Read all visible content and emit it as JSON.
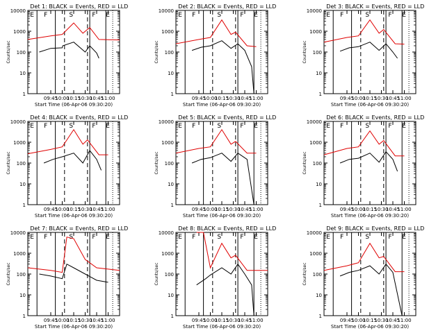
{
  "figure": {
    "background": "#ffffff",
    "axis_color": "#000000",
    "events_color": "#000000",
    "lld_color": "#e00000"
  },
  "chart_data": [
    {
      "type": "line",
      "title": "Det 1: BLACK = Events, RED = LLD",
      "xlabel": "Start Time (06-Apr-06 09:30:20)",
      "ylabel": "Counts/sec",
      "x_ticks": [
        "09:45",
        "10:00",
        "10:15",
        "10:30",
        "10:45",
        "11:00"
      ],
      "y_ticks": [
        "1",
        "10",
        "100",
        "1000",
        "10000"
      ],
      "y_scale": "log",
      "ylim": [
        1,
        10000
      ],
      "markers": [
        "E",
        "F",
        "S",
        "F",
        "E"
      ],
      "series": [
        {
          "name": "Events",
          "color": "black",
          "values": [
            [
              9.5,
              100
            ],
            [
              9.75,
              150
            ],
            [
              10.0,
              160
            ],
            [
              10.01,
              200
            ],
            [
              10.25,
              300
            ],
            [
              10.5,
              100
            ],
            [
              10.6,
              200
            ],
            [
              10.75,
              90
            ],
            [
              10.8,
              50
            ]
          ]
        },
        {
          "name": "LLD",
          "color": "red",
          "values": [
            [
              9.25,
              400
            ],
            [
              9.75,
              600
            ],
            [
              10.0,
              700
            ],
            [
              10.25,
              2500
            ],
            [
              10.45,
              800
            ],
            [
              10.6,
              1500
            ],
            [
              10.8,
              400
            ],
            [
              11.25,
              380
            ]
          ]
        }
      ]
    },
    {
      "type": "line",
      "title": "Det 2: BLACK = Events, RED = LLD",
      "xlabel": "Start Time (06-Apr-06 09:30:20)",
      "ylabel": "Counts/sec",
      "x_ticks": [
        "09:45",
        "10:00",
        "10:15",
        "10:30",
        "10:45",
        "11:00"
      ],
      "y_ticks": [
        "1",
        "10",
        "100",
        "1000",
        "10000"
      ],
      "y_scale": "log",
      "ylim": [
        1,
        10000
      ],
      "markers": [
        "E",
        "F",
        "S",
        "F",
        "E"
      ],
      "series": [
        {
          "name": "Events",
          "color": "black",
          "values": [
            [
              9.6,
              120
            ],
            [
              9.8,
              170
            ],
            [
              10.0,
              200
            ],
            [
              10.25,
              350
            ],
            [
              10.45,
              150
            ],
            [
              10.6,
              250
            ],
            [
              10.75,
              120
            ],
            [
              10.9,
              20
            ],
            [
              10.95,
              1
            ]
          ]
        },
        {
          "name": "LLD",
          "color": "red",
          "values": [
            [
              9.25,
              250
            ],
            [
              9.75,
              400
            ],
            [
              10.0,
              500
            ],
            [
              10.25,
              3500
            ],
            [
              10.45,
              700
            ],
            [
              10.55,
              900
            ],
            [
              10.8,
              200
            ],
            [
              11.0,
              180
            ]
          ]
        }
      ]
    },
    {
      "type": "line",
      "title": "Det 3: BLACK = Events, RED = LLD",
      "xlabel": "Start Time (06-Apr-06 09:30:20)",
      "ylabel": "Counts/sec",
      "x_ticks": [
        "09:45",
        "10:00",
        "10:15",
        "10:30",
        "10:45",
        "11:00"
      ],
      "y_ticks": [
        "1",
        "10",
        "100",
        "1000",
        "10000"
      ],
      "y_scale": "log",
      "ylim": [
        1,
        10000
      ],
      "markers": [
        "E",
        "F",
        "S",
        "F",
        "E"
      ],
      "series": [
        {
          "name": "Events",
          "color": "black",
          "values": [
            [
              9.6,
              110
            ],
            [
              9.8,
              160
            ],
            [
              10.0,
              180
            ],
            [
              10.25,
              300
            ],
            [
              10.45,
              120
            ],
            [
              10.6,
              250
            ],
            [
              10.75,
              100
            ],
            [
              10.85,
              50
            ]
          ]
        },
        {
          "name": "LLD",
          "color": "red",
          "values": [
            [
              9.25,
              300
            ],
            [
              9.75,
              500
            ],
            [
              10.0,
              600
            ],
            [
              10.25,
              3500
            ],
            [
              10.45,
              800
            ],
            [
              10.55,
              1200
            ],
            [
              10.8,
              250
            ],
            [
              11.0,
              240
            ]
          ]
        }
      ]
    },
    {
      "type": "line",
      "title": "Det 4: BLACK = Events, RED = LLD",
      "xlabel": "Start Time (06-Apr-06 09:30:20)",
      "ylabel": "Counts/sec",
      "x_ticks": [
        "09:45",
        "10:00",
        "10:15",
        "10:30",
        "10:45",
        "11:00"
      ],
      "y_ticks": [
        "1",
        "10",
        "100",
        "1000",
        "10000"
      ],
      "y_scale": "log",
      "ylim": [
        1,
        10000
      ],
      "markers": [
        "E",
        "F",
        "S",
        "F",
        "E"
      ],
      "series": [
        {
          "name": "Events",
          "color": "black",
          "values": [
            [
              9.6,
              100
            ],
            [
              9.8,
              150
            ],
            [
              10.0,
              200
            ],
            [
              10.25,
              300
            ],
            [
              10.45,
              100
            ],
            [
              10.6,
              400
            ],
            [
              10.75,
              150
            ],
            [
              10.85,
              45
            ]
          ]
        },
        {
          "name": "LLD",
          "color": "red",
          "values": [
            [
              9.25,
              280
            ],
            [
              9.75,
              450
            ],
            [
              10.0,
              600
            ],
            [
              10.25,
              4000
            ],
            [
              10.45,
              800
            ],
            [
              10.55,
              1300
            ],
            [
              10.8,
              250
            ],
            [
              11.0,
              250
            ]
          ]
        }
      ]
    },
    {
      "type": "line",
      "title": "Det 5: BLACK = Events, RED = LLD",
      "xlabel": "Start Time (06-Apr-06 09:30:20)",
      "ylabel": "Counts/sec",
      "x_ticks": [
        "09:45",
        "10:00",
        "10:15",
        "10:30",
        "10:45",
        "11:00"
      ],
      "y_ticks": [
        "1",
        "10",
        "100",
        "1000",
        "10000"
      ],
      "y_scale": "log",
      "ylim": [
        1,
        10000
      ],
      "markers": [
        "E",
        "F",
        "S",
        "F",
        "E"
      ],
      "series": [
        {
          "name": "Events",
          "color": "black",
          "values": [
            [
              9.6,
              100
            ],
            [
              9.8,
              150
            ],
            [
              10.0,
              180
            ],
            [
              10.25,
              300
            ],
            [
              10.45,
              120
            ],
            [
              10.6,
              300
            ],
            [
              10.8,
              150
            ],
            [
              10.95,
              1
            ]
          ]
        },
        {
          "name": "LLD",
          "color": "red",
          "values": [
            [
              9.25,
              300
            ],
            [
              9.75,
              500
            ],
            [
              10.0,
              600
            ],
            [
              10.25,
              4000
            ],
            [
              10.45,
              800
            ],
            [
              10.55,
              1100
            ],
            [
              10.8,
              300
            ],
            [
              11.0,
              300
            ]
          ]
        }
      ]
    },
    {
      "type": "line",
      "title": "Det 6: BLACK = Events, RED = LLD",
      "xlabel": "Start Time (06-Apr-06 09:30:20)",
      "ylabel": "Counts/sec",
      "x_ticks": [
        "09:45",
        "10:00",
        "10:15",
        "10:30",
        "10:45",
        "11:00"
      ],
      "y_ticks": [
        "1",
        "10",
        "100",
        "1000",
        "10000"
      ],
      "y_scale": "log",
      "ylim": [
        1,
        10000
      ],
      "markers": [
        "E",
        "F",
        "S",
        "F",
        "E"
      ],
      "series": [
        {
          "name": "Events",
          "color": "black",
          "values": [
            [
              9.6,
              100
            ],
            [
              9.8,
              150
            ],
            [
              10.0,
              170
            ],
            [
              10.25,
              300
            ],
            [
              10.45,
              110
            ],
            [
              10.6,
              350
            ],
            [
              10.75,
              150
            ],
            [
              10.85,
              40
            ]
          ]
        },
        {
          "name": "LLD",
          "color": "red",
          "values": [
            [
              9.25,
              250
            ],
            [
              9.75,
              500
            ],
            [
              10.0,
              600
            ],
            [
              10.25,
              3500
            ],
            [
              10.45,
              800
            ],
            [
              10.55,
              1200
            ],
            [
              10.8,
              220
            ],
            [
              11.0,
              220
            ]
          ]
        }
      ]
    },
    {
      "type": "line",
      "title": "Det 7: BLACK = Events, RED = LLD",
      "xlabel": "Start Time (06-Apr-06 09:30:20)",
      "ylabel": "Counts/sec",
      "x_ticks": [
        "09:45",
        "10:00",
        "10:15",
        "10:30",
        "10:45",
        "11:00"
      ],
      "y_ticks": [
        "1",
        "10",
        "100",
        "1000",
        "10000"
      ],
      "y_scale": "log",
      "ylim": [
        1,
        10000
      ],
      "markers": [
        "E",
        "F",
        "S",
        "F",
        "E"
      ],
      "series": [
        {
          "name": "Events",
          "color": "black",
          "values": [
            [
              9.5,
              100
            ],
            [
              9.75,
              80
            ],
            [
              10.0,
              60
            ],
            [
              10.1,
              300
            ],
            [
              10.25,
              200
            ],
            [
              10.5,
              100
            ],
            [
              10.75,
              50
            ],
            [
              11.0,
              40
            ]
          ]
        },
        {
          "name": "LLD",
          "color": "red",
          "values": [
            [
              9.25,
              200
            ],
            [
              9.75,
              150
            ],
            [
              10.0,
              120
            ],
            [
              10.1,
              6000
            ],
            [
              10.25,
              5000
            ],
            [
              10.5,
              500
            ],
            [
              10.75,
              200
            ],
            [
              11.25,
              150
            ]
          ]
        }
      ]
    },
    {
      "type": "line",
      "title": "Det 8: BLACK = Events, RED = LLD",
      "xlabel": "Start Time (06-Apr-06 09:30:20)",
      "ylabel": "Counts/sec",
      "x_ticks": [
        "09:45",
        "10:00",
        "10:15",
        "10:30",
        "10:45",
        "11:00"
      ],
      "y_ticks": [
        "1",
        "10",
        "100",
        "1000",
        "10000"
      ],
      "y_scale": "log",
      "ylim": [
        1,
        10000
      ],
      "markers": [
        "E",
        "F",
        "S",
        "F",
        "E"
      ],
      "series": [
        {
          "name": "Events",
          "color": "black",
          "values": [
            [
              9.7,
              30
            ],
            [
              9.9,
              60
            ],
            [
              10.0,
              90
            ],
            [
              10.25,
              200
            ],
            [
              10.45,
              100
            ],
            [
              10.6,
              300
            ],
            [
              10.75,
              100
            ],
            [
              10.9,
              30
            ],
            [
              10.95,
              1
            ]
          ]
        },
        {
          "name": "LLD",
          "color": "red",
          "values": [
            [
              9.7,
              10000
            ],
            [
              9.85,
              10000
            ],
            [
              10.0,
              200
            ],
            [
              10.25,
              3000
            ],
            [
              10.45,
              600
            ],
            [
              10.55,
              800
            ],
            [
              10.8,
              150
            ],
            [
              11.25,
              150
            ]
          ]
        }
      ]
    },
    {
      "type": "line",
      "title": "Det 9: BLACK = Events, RED = LLD",
      "xlabel": "Start Time (06-Apr-06 09:30:20)",
      "ylabel": "Counts/sec",
      "x_ticks": [
        "09:45",
        "10:00",
        "10:15",
        "10:30",
        "10:45",
        "11:00"
      ],
      "y_ticks": [
        "1",
        "10",
        "100",
        "1000",
        "10000"
      ],
      "y_scale": "log",
      "ylim": [
        1,
        10000
      ],
      "markers": [
        "E",
        "F",
        "S",
        "F",
        "E"
      ],
      "series": [
        {
          "name": "Events",
          "color": "black",
          "values": [
            [
              9.6,
              80
            ],
            [
              9.8,
              120
            ],
            [
              10.0,
              150
            ],
            [
              10.25,
              250
            ],
            [
              10.45,
              100
            ],
            [
              10.6,
              300
            ],
            [
              10.75,
              120
            ],
            [
              10.95,
              1
            ]
          ]
        },
        {
          "name": "LLD",
          "color": "red",
          "values": [
            [
              9.25,
              150
            ],
            [
              9.75,
              250
            ],
            [
              10.0,
              350
            ],
            [
              10.25,
              3000
            ],
            [
              10.45,
              600
            ],
            [
              10.55,
              700
            ],
            [
              10.8,
              130
            ],
            [
              11.0,
              130
            ]
          ]
        }
      ]
    }
  ]
}
